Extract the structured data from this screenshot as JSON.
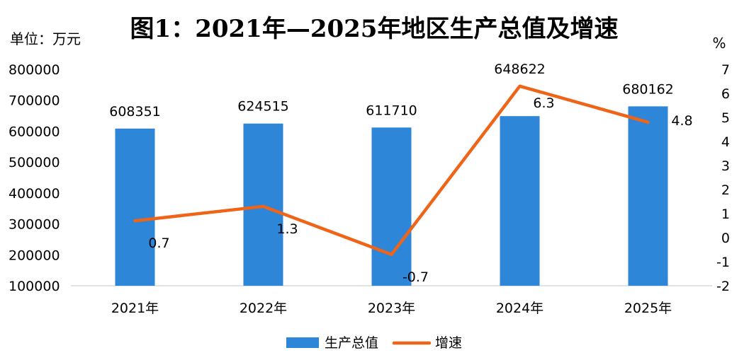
{
  "chart_data": {
    "type": "bar+line",
    "title": "图1：2021年—2025年地区生产总值及增速",
    "y_left_unit": "单位：万元",
    "y_right_unit": "%",
    "categories": [
      "2021年",
      "2022年",
      "2023年",
      "2024年",
      "2025年"
    ],
    "series": [
      {
        "name": "生产总值",
        "type": "bar",
        "axis": "left",
        "color": "#2E86D8",
        "values": [
          608351,
          624515,
          611710,
          648622,
          680162
        ]
      },
      {
        "name": "增速",
        "type": "line",
        "axis": "right",
        "color": "#F06418",
        "values": [
          0.7,
          1.3,
          -0.7,
          6.3,
          4.8
        ]
      }
    ],
    "y_left_ticks": [
      100000,
      200000,
      300000,
      400000,
      500000,
      600000,
      700000,
      800000
    ],
    "y_left_range": [
      100000,
      800000
    ],
    "y_right_ticks": [
      -2,
      -1,
      0,
      1,
      2,
      3,
      4,
      5,
      6,
      7
    ],
    "y_right_range": [
      -2,
      7
    ],
    "grid": false,
    "legend_position": "bottom"
  }
}
